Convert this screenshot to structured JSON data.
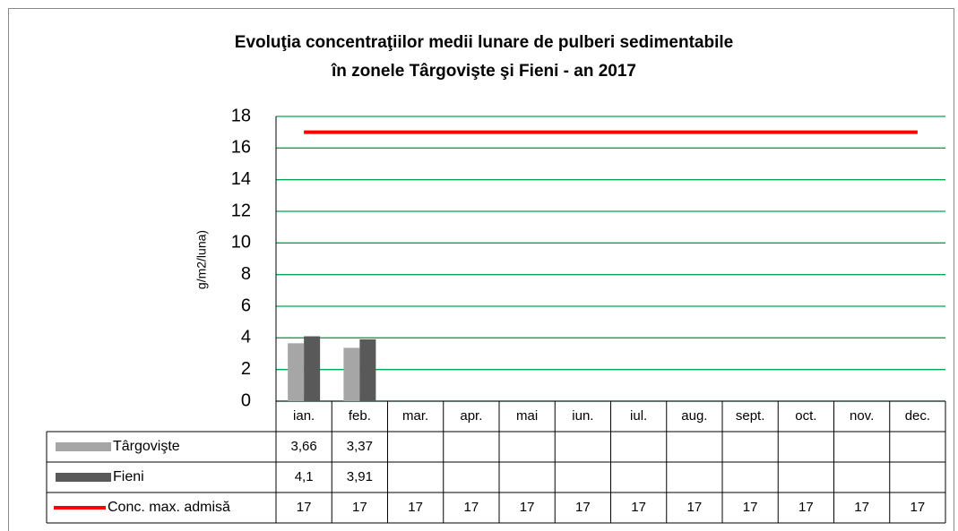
{
  "chart_data": {
    "type": "bar",
    "title": [
      "Evoluţia concentraţiilor medii lunare de pulberi sedimentabile",
      "în zonele Târgovişte şi Fieni - an 2017"
    ],
    "y_label": "g/m2/luna)",
    "categories": [
      "ian.",
      "feb.",
      "mar.",
      "apr.",
      "mai",
      "iun.",
      "iul.",
      "aug.",
      "sept.",
      "oct.",
      "nov.",
      "dec."
    ],
    "series": [
      {
        "name": "Târgovişte",
        "type": "bar",
        "color": "#a6a6a6",
        "values": [
          3.66,
          3.37,
          null,
          null,
          null,
          null,
          null,
          null,
          null,
          null,
          null,
          null
        ],
        "value_labels": [
          "3,66",
          "3,37",
          null,
          null,
          null,
          null,
          null,
          null,
          null,
          null,
          null,
          null
        ]
      },
      {
        "name": "Fieni",
        "type": "bar",
        "color": "#595959",
        "values": [
          4.1,
          3.91,
          null,
          null,
          null,
          null,
          null,
          null,
          null,
          null,
          null,
          null
        ],
        "value_labels": [
          "4,1",
          "3,91",
          null,
          null,
          null,
          null,
          null,
          null,
          null,
          null,
          null,
          null
        ]
      },
      {
        "name": "Conc. max. admisă",
        "type": "line",
        "color": "#ff0000",
        "values": [
          17,
          17,
          17,
          17,
          17,
          17,
          17,
          17,
          17,
          17,
          17,
          17
        ]
      }
    ],
    "ylim": [
      0,
      18
    ],
    "yticks": [
      0,
      2,
      4,
      6,
      8,
      10,
      12,
      14,
      16,
      18
    ],
    "grid": true,
    "grid_color": "#00a650"
  }
}
